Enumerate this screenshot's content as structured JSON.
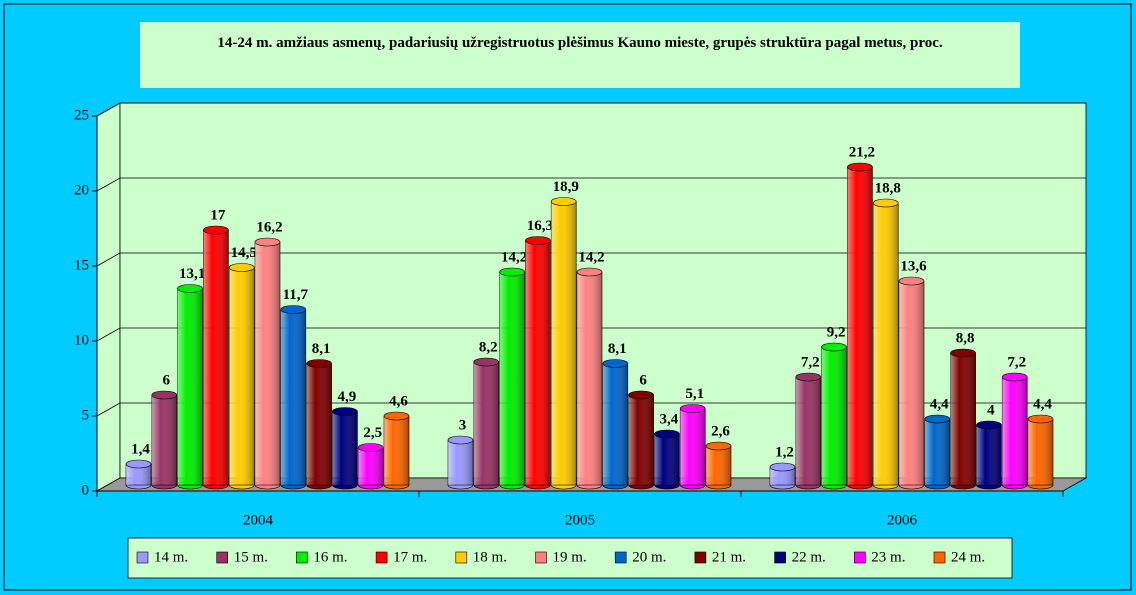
{
  "chart_data": {
    "type": "bar3d",
    "title": "14-24 m. amžiaus asmenų, padariusių užregistruotus plėšimus Kauno mieste, grupės struktūra pagal metus, proc.",
    "categories": [
      "2004",
      "2005",
      "2006"
    ],
    "series": [
      {
        "name": "14 m.",
        "color": "#9999ff",
        "values": [
          1.4,
          3,
          1.2
        ],
        "value_labels": [
          "1,4",
          "3",
          "1,2"
        ]
      },
      {
        "name": "15 m.",
        "color": "#993366",
        "values": [
          6,
          8.2,
          7.2
        ],
        "value_labels": [
          "6",
          "8,2",
          "7,2"
        ]
      },
      {
        "name": "16 m.",
        "color": "#00ee00",
        "values": [
          13.1,
          14.2,
          9.2
        ],
        "value_labels": [
          "13,1",
          "14,2",
          "9,2"
        ]
      },
      {
        "name": "17 m.",
        "color": "#ff0000",
        "values": [
          17,
          16.3,
          21.2
        ],
        "value_labels": [
          "17",
          "16,3",
          "21,2"
        ]
      },
      {
        "name": "18 m.",
        "color": "#ffcc00",
        "values": [
          14.5,
          18.9,
          18.8
        ],
        "value_labels": [
          "14,5",
          "18,9",
          "18,8"
        ]
      },
      {
        "name": "19 m.",
        "color": "#ff8080",
        "values": [
          16.2,
          14.2,
          13.6
        ],
        "value_labels": [
          "16,2",
          "14,2",
          "13,6"
        ]
      },
      {
        "name": "20 m.",
        "color": "#0066cc",
        "values": [
          11.7,
          8.1,
          4.4
        ],
        "value_labels": [
          "11,7",
          "8,1",
          "4,4"
        ]
      },
      {
        "name": "21 m.",
        "color": "#800000",
        "values": [
          8.1,
          6,
          8.8
        ],
        "value_labels": [
          "8,1",
          "6",
          "8,8"
        ]
      },
      {
        "name": "22 m.",
        "color": "#000080",
        "values": [
          4.9,
          3.4,
          4
        ],
        "value_labels": [
          "4,9",
          "3,4",
          "4"
        ]
      },
      {
        "name": "23 m.",
        "color": "#ff00ff",
        "values": [
          2.5,
          5.1,
          7.2
        ],
        "value_labels": [
          "2,5",
          "5,1",
          "7,2"
        ]
      },
      {
        "name": "24 m.",
        "color": "#ff6600",
        "values": [
          4.6,
          2.6,
          4.4
        ],
        "value_labels": [
          "4,6",
          "2,6",
          "4,4"
        ]
      }
    ],
    "ylim": [
      0,
      25
    ],
    "yticks": [
      0,
      5,
      10,
      15,
      20,
      25
    ],
    "grid": true,
    "legend": "bottom"
  }
}
